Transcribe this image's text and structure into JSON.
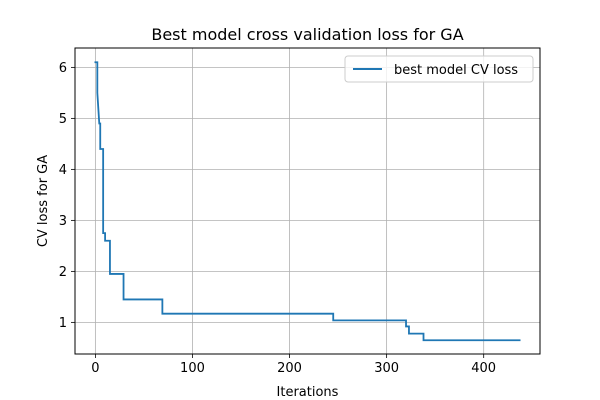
{
  "chart_data": {
    "type": "line",
    "title": "Best model cross validation loss for GA",
    "xlabel": "Iterations",
    "ylabel": "CV loss for GA",
    "xlim": [
      -21,
      458
    ],
    "ylim": [
      0.38,
      6.38
    ],
    "xticks": [
      0,
      100,
      200,
      300,
      400
    ],
    "yticks": [
      1,
      2,
      3,
      4,
      5,
      6
    ],
    "grid": true,
    "legend_position": "upper right",
    "series": [
      {
        "name": "best model CV loss",
        "color": "#1f77b4",
        "style": "step",
        "points": [
          [
            0,
            6.1
          ],
          [
            2,
            6.1
          ],
          [
            2,
            5.5
          ],
          [
            4,
            4.9
          ],
          [
            5,
            4.9
          ],
          [
            5,
            4.4
          ],
          [
            8,
            4.4
          ],
          [
            8,
            2.75
          ],
          [
            10,
            2.75
          ],
          [
            10,
            2.6
          ],
          [
            15,
            2.6
          ],
          [
            15,
            1.95
          ],
          [
            29,
            1.95
          ],
          [
            29,
            1.45
          ],
          [
            69,
            1.45
          ],
          [
            69,
            1.17
          ],
          [
            245,
            1.17
          ],
          [
            245,
            1.04
          ],
          [
            320,
            1.04
          ],
          [
            320,
            0.92
          ],
          [
            323,
            0.92
          ],
          [
            323,
            0.78
          ],
          [
            338,
            0.78
          ],
          [
            338,
            0.65
          ],
          [
            437,
            0.65
          ]
        ]
      }
    ]
  }
}
